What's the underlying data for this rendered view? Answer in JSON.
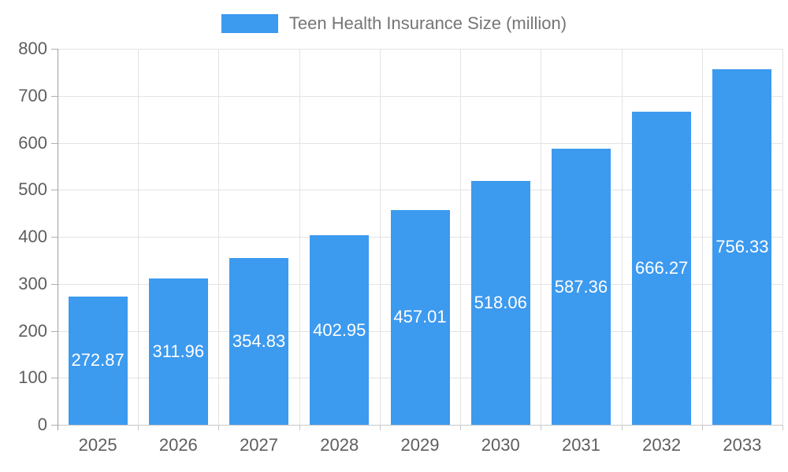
{
  "chart_data": {
    "type": "bar",
    "title": "Teen Health Insurance Size (million)",
    "legend": [
      "Teen Health Insurance Size (million)"
    ],
    "legend_position": "top-center",
    "categories": [
      "2025",
      "2026",
      "2027",
      "2028",
      "2029",
      "2030",
      "2031",
      "2032",
      "2033"
    ],
    "series": [
      {
        "name": "Teen Health Insurance Size (million)",
        "values": [
          272.87,
          311.96,
          354.83,
          402.95,
          457.01,
          518.06,
          587.36,
          666.27,
          756.33
        ]
      }
    ],
    "value_labels": "inside-center",
    "xlabel": "",
    "ylabel": "",
    "ylim": [
      0,
      800
    ],
    "ytick_step": 100,
    "yticks": [
      "0",
      "100",
      "200",
      "300",
      "400",
      "500",
      "600",
      "700",
      "800"
    ],
    "grid": "horizontal and vertical light gridlines",
    "colors": {
      "bar": "#3C9AEF",
      "grid_line": "#E3E3E3",
      "y_axis_line": "#A0A0A0",
      "x_axis_line": "#C8C8C8",
      "y_tick": "#B0B0B0",
      "x_tick": "#C8C8C8",
      "axis_label_text": "#5E5E5E",
      "legend_text": "#757575",
      "value_label_text": "#FFFFFF",
      "background": "#FFFFFF"
    }
  }
}
